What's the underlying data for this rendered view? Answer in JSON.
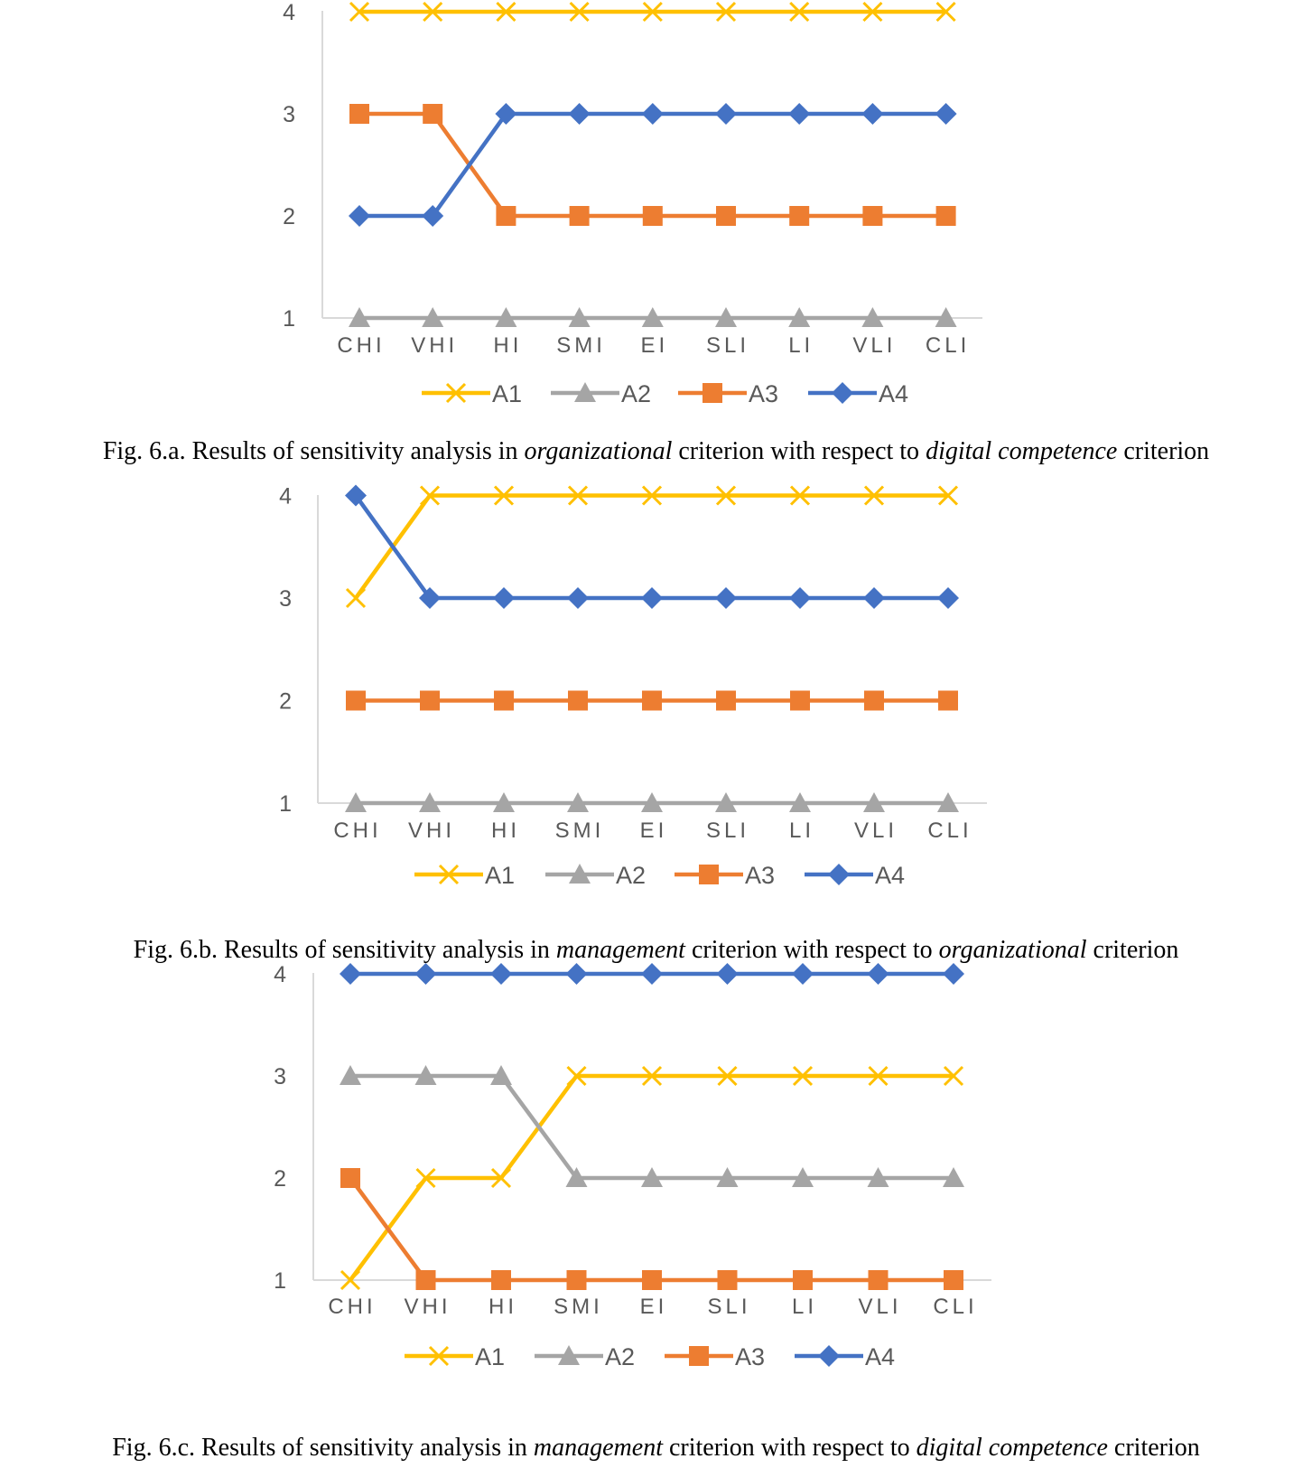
{
  "colors": {
    "A1": "#FFC000",
    "A2": "#A5A5A5",
    "A3": "#ED7D31",
    "A4": "#4472C4",
    "axis": "#d9d9d9",
    "text": "#595959"
  },
  "chart_data": [
    {
      "type": "line",
      "categories": [
        "CHI",
        "VHI",
        "HI",
        "SMI",
        "EI",
        "SLI",
        "LI",
        "VLI",
        "CLI"
      ],
      "ylim": [
        1,
        4
      ],
      "yticks": [
        "1",
        "2",
        "3",
        "4"
      ],
      "legend": "bottom",
      "series": [
        {
          "name": "A1",
          "marker": "x",
          "values": [
            4,
            4,
            4,
            4,
            4,
            4,
            4,
            4,
            4
          ]
        },
        {
          "name": "A2",
          "marker": "triangle",
          "values": [
            1,
            1,
            1,
            1,
            1,
            1,
            1,
            1,
            1
          ]
        },
        {
          "name": "A3",
          "marker": "square",
          "values": [
            3,
            3,
            2,
            2,
            2,
            2,
            2,
            2,
            2
          ]
        },
        {
          "name": "A4",
          "marker": "diamond",
          "values": [
            2,
            2,
            3,
            3,
            3,
            3,
            3,
            3,
            3
          ]
        }
      ],
      "caption": {
        "p1": "Fig. 6.a. Results of sensitivity analysis in ",
        "i1": "organizational",
        "p2": " criterion with respect to ",
        "i2": "digital competence",
        "p3": " criterion"
      }
    },
    {
      "type": "line",
      "categories": [
        "CHI",
        "VHI",
        "HI",
        "SMI",
        "EI",
        "SLI",
        "LI",
        "VLI",
        "CLI"
      ],
      "ylim": [
        1,
        4
      ],
      "yticks": [
        "1",
        "2",
        "3",
        "4"
      ],
      "legend": "bottom",
      "series": [
        {
          "name": "A1",
          "marker": "x",
          "values": [
            3,
            4,
            4,
            4,
            4,
            4,
            4,
            4,
            4
          ]
        },
        {
          "name": "A2",
          "marker": "triangle",
          "values": [
            1,
            1,
            1,
            1,
            1,
            1,
            1,
            1,
            1
          ]
        },
        {
          "name": "A3",
          "marker": "square",
          "values": [
            2,
            2,
            2,
            2,
            2,
            2,
            2,
            2,
            2
          ]
        },
        {
          "name": "A4",
          "marker": "diamond",
          "values": [
            4,
            3,
            3,
            3,
            3,
            3,
            3,
            3,
            3
          ]
        }
      ],
      "caption": {
        "p1": "Fig. 6.b. Results of sensitivity analysis in ",
        "i1": "management",
        "p2": " criterion with respect to ",
        "i2": "organizational",
        "p3": " criterion"
      }
    },
    {
      "type": "line",
      "categories": [
        "CHI",
        "VHI",
        "HI",
        "SMI",
        "EI",
        "SLI",
        "LI",
        "VLI",
        "CLI"
      ],
      "ylim": [
        1,
        4
      ],
      "yticks": [
        "1",
        "2",
        "3",
        "4"
      ],
      "legend": "bottom",
      "series": [
        {
          "name": "A1",
          "marker": "x",
          "values": [
            1,
            2,
            2,
            3,
            3,
            3,
            3,
            3,
            3
          ]
        },
        {
          "name": "A2",
          "marker": "triangle",
          "values": [
            3,
            3,
            3,
            2,
            2,
            2,
            2,
            2,
            2
          ]
        },
        {
          "name": "A3",
          "marker": "square",
          "values": [
            2,
            1,
            1,
            1,
            1,
            1,
            1,
            1,
            1
          ]
        },
        {
          "name": "A4",
          "marker": "diamond",
          "values": [
            4,
            4,
            4,
            4,
            4,
            4,
            4,
            4,
            4
          ]
        }
      ],
      "caption": {
        "p1": "Fig. 6.c. Results of sensitivity analysis in ",
        "i1": "management",
        "p2": " criterion with respect to ",
        "i2": "digital competence",
        "p3": " criterion"
      }
    }
  ]
}
